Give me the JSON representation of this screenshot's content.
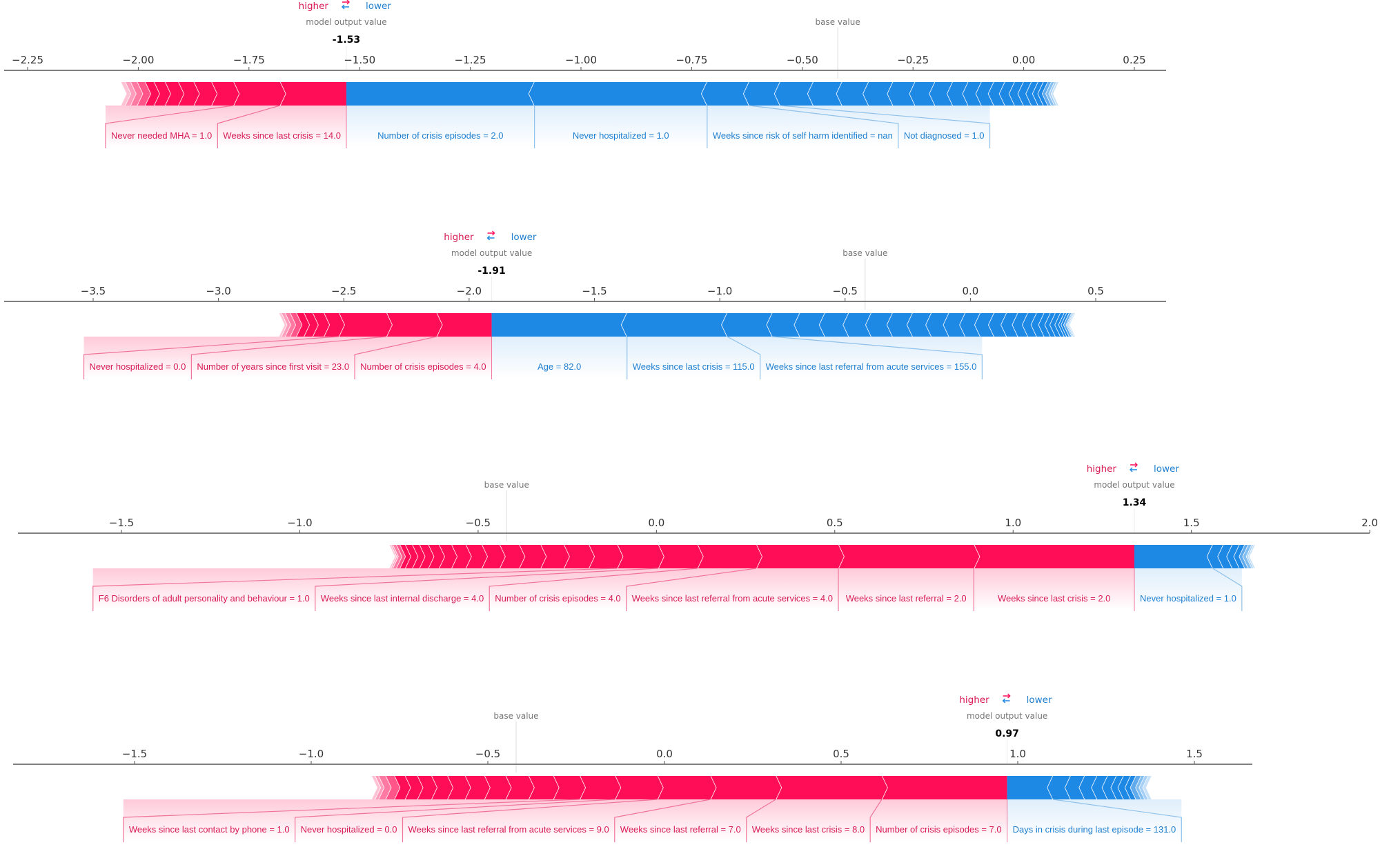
{
  "legend": {
    "higher": "higher",
    "lower": "lower",
    "model_output_value": "model output value",
    "base_value": "base value"
  },
  "colors": {
    "positive": "#ff0d57",
    "negative": "#1e88e5",
    "positive_text": "#d81a55",
    "negative_text": "#1e7fd0"
  },
  "chart_data": [
    {
      "type": "force",
      "output_value": -1.53,
      "output_label": "-1.53",
      "base_value": -0.42,
      "ticks": [
        -2.25,
        -2.0,
        -1.75,
        -1.5,
        -1.25,
        -1.0,
        -0.75,
        -0.5,
        -0.25,
        0.0,
        0.25
      ],
      "tick_labels": [
        "−2.25",
        "−2.00",
        "−1.75",
        "−1.50",
        "−1.25",
        "−1.00",
        "−0.75",
        "−0.50",
        "−0.25",
        "0.00",
        "0.25"
      ],
      "positive_features": [
        {
          "label": "Weeks since last crisis = 14.0",
          "shap": 0.15
        },
        {
          "label": "Never needed MHA = 1.0",
          "shap": 0.105
        }
      ],
      "positive_other": [
        0.05,
        0.04,
        0.035,
        0.03,
        0.025,
        0.02,
        0.018,
        0.015,
        0.012,
        0.01
      ],
      "negative_features": [
        {
          "label": "Number of crisis episodes = 2.0",
          "shap": 0.425
        },
        {
          "label": "Never hospitalized = 1.0",
          "shap": 0.39
        },
        {
          "label": "Weeks since risk of self harm identified = nan",
          "shap": 0.095
        },
        {
          "label": "Not diagnosed = 1.0",
          "shap": 0.07
        }
      ],
      "negative_other": [
        0.075,
        0.065,
        0.06,
        0.055,
        0.05,
        0.045,
        0.04,
        0.035,
        0.03,
        0.028,
        0.025,
        0.022,
        0.02,
        0.018,
        0.015,
        0.012,
        0.01,
        0.008,
        0.007,
        0.005,
        0.005
      ]
    },
    {
      "type": "force",
      "output_value": -1.91,
      "output_label": "-1.91",
      "base_value": -0.42,
      "ticks": [
        -3.5,
        -3.0,
        -2.5,
        -2.0,
        -1.5,
        -1.0,
        -0.5,
        0.0,
        0.5
      ],
      "tick_labels": [
        "−3.5",
        "−3.0",
        "−2.5",
        "−2.0",
        "−1.5",
        "−1.0",
        "−0.5",
        "0.0",
        "0.5"
      ],
      "positive_features": [
        {
          "label": "Number of crisis episodes = 4.0",
          "shap": 0.22
        },
        {
          "label": "Number of years since first visit = 23.0",
          "shap": 0.2
        },
        {
          "label": "Never hospitalized = 0.0",
          "shap": 0.19
        }
      ],
      "positive_other": [
        0.06,
        0.045,
        0.035,
        0.03,
        0.025,
        0.02,
        0.015,
        0.01
      ],
      "negative_features": [
        {
          "label": "Age = 82.0",
          "shap": 0.54
        },
        {
          "label": "Weeks since last crisis = 115.0",
          "shap": 0.4
        },
        {
          "label": "Weeks since last referral from acute services = 155.0",
          "shap": 0.18
        }
      ],
      "negative_other": [
        0.11,
        0.1,
        0.095,
        0.09,
        0.085,
        0.08,
        0.075,
        0.07,
        0.065,
        0.06,
        0.055,
        0.05,
        0.045,
        0.04,
        0.035,
        0.03,
        0.025,
        0.02,
        0.02,
        0.015,
        0.01,
        0.01,
        0.01,
        0.005,
        0.005,
        0.005
      ]
    },
    {
      "type": "force",
      "output_value": 1.34,
      "output_label": "1.34",
      "base_value": -0.42,
      "ticks": [
        -1.5,
        -1.0,
        -0.5,
        0.0,
        0.5,
        1.0,
        1.5,
        2.0
      ],
      "tick_labels": [
        "−1.5",
        "−1.0",
        "−0.5",
        "0.0",
        "0.5",
        "1.0",
        "1.5",
        "2.0"
      ],
      "positive_features": [
        {
          "label": "Weeks since last crisis = 2.0",
          "shap": 0.45
        },
        {
          "label": "Weeks since last referral = 2.0",
          "shap": 0.38
        },
        {
          "label": "Weeks since last referral from acute services = 4.0",
          "shap": 0.23
        },
        {
          "label": "Number of crisis episodes = 4.0",
          "shap": 0.165
        },
        {
          "label": "Weeks since last internal discharge = 4.0",
          "shap": 0.11
        },
        {
          "label": "F6 Disorders of adult personality and behaviour = 1.0",
          "shap": 0.115
        }
      ],
      "positive_other": [
        0.08,
        0.07,
        0.065,
        0.06,
        0.055,
        0.05,
        0.045,
        0.04,
        0.035,
        0.03,
        0.025,
        0.02,
        0.02,
        0.015,
        0.01,
        0.01,
        0.005,
        0.005
      ],
      "negative_features": [
        {
          "label": "Never hospitalized = 1.0",
          "shap": 0.22
        }
      ],
      "negative_other": [
        0.03,
        0.025,
        0.02,
        0.015,
        0.01,
        0.01,
        0.005,
        0.005
      ]
    },
    {
      "type": "force",
      "output_value": 0.97,
      "output_label": "0.97",
      "base_value": -0.42,
      "ticks": [
        -1.5,
        -1.0,
        -0.5,
        0.0,
        0.5,
        1.0,
        1.5
      ],
      "tick_labels": [
        "−1.5",
        "−1.0",
        "−0.5",
        "0.0",
        "0.5",
        "1.0",
        "1.5"
      ],
      "positive_features": [
        {
          "label": "Number of crisis episodes = 7.0",
          "shap": 0.355
        },
        {
          "label": "Weeks since last crisis = 8.0",
          "shap": 0.3
        },
        {
          "label": "Weeks since last referral = 7.0",
          "shap": 0.185
        },
        {
          "label": "Weeks since last referral from acute services = 9.0",
          "shap": 0.15
        },
        {
          "label": "Never hospitalized = 0.0",
          "shap": 0.12
        },
        {
          "label": "Weeks since last contact by phone = 1.0",
          "shap": 0.1
        }
      ],
      "positive_other": [
        0.075,
        0.07,
        0.065,
        0.06,
        0.055,
        0.05,
        0.045,
        0.04,
        0.035,
        0.03,
        0.025,
        0.02,
        0.01,
        0.01
      ],
      "negative_features": [
        {
          "label": "Days in crisis during last episode = 131.0",
          "shap": 0.13
        }
      ],
      "negative_other": [
        0.05,
        0.04,
        0.035,
        0.03,
        0.025,
        0.02,
        0.02,
        0.015,
        0.015,
        0.01,
        0.01,
        0.01
      ]
    }
  ]
}
